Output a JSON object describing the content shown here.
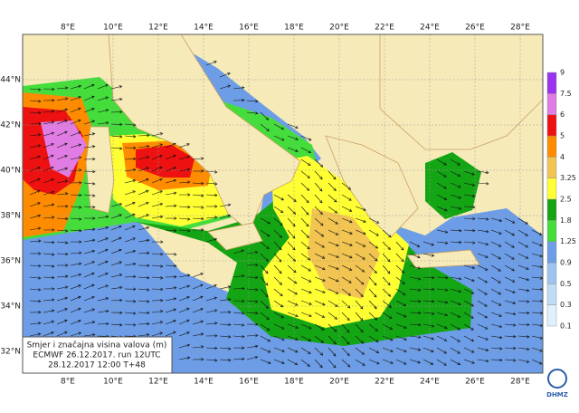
{
  "map": {
    "lon_ticks": [
      {
        "value": 8,
        "label": "8°E"
      },
      {
        "value": 10,
        "label": "10°E"
      },
      {
        "value": 12,
        "label": "12°E"
      },
      {
        "value": 14,
        "label": "14°E"
      },
      {
        "value": 16,
        "label": "16°E"
      },
      {
        "value": 18,
        "label": "18°E"
      },
      {
        "value": 20,
        "label": "20°E"
      },
      {
        "value": 22,
        "label": "22°E"
      },
      {
        "value": 24,
        "label": "24°E"
      },
      {
        "value": 26,
        "label": "26°E"
      },
      {
        "value": 28,
        "label": "28°E"
      }
    ],
    "lat_ticks": [
      {
        "value": 44,
        "label": "44°N"
      },
      {
        "value": 42,
        "label": "42°N"
      },
      {
        "value": 40,
        "label": "40°N"
      },
      {
        "value": 38,
        "label": "38°N"
      },
      {
        "value": 36,
        "label": "36°N"
      },
      {
        "value": 34,
        "label": "34°N"
      },
      {
        "value": 32,
        "label": "32°N"
      }
    ],
    "legend": {
      "levels": [
        0.1,
        0.3,
        0.5,
        0.9,
        1.25,
        1.8,
        2.5,
        3.25,
        4,
        5,
        6,
        7.5,
        9
      ],
      "colors": [
        "#dff1fd",
        "#bfdcf6",
        "#9fc3ef",
        "#6c9de6",
        "#44dd3c",
        "#14a514",
        "#ffff33",
        "#f2c451",
        "#ff8c00",
        "#ee1111",
        "#e07ce3",
        "#9933ee"
      ]
    },
    "info_box": {
      "lines": [
        "Smjer i značajna visina valova (m)",
        "ECMWF 26.12.2017. run 12UTC",
        "28.12.2017 12:00  T+48"
      ]
    },
    "logo": "DHMZ"
  }
}
